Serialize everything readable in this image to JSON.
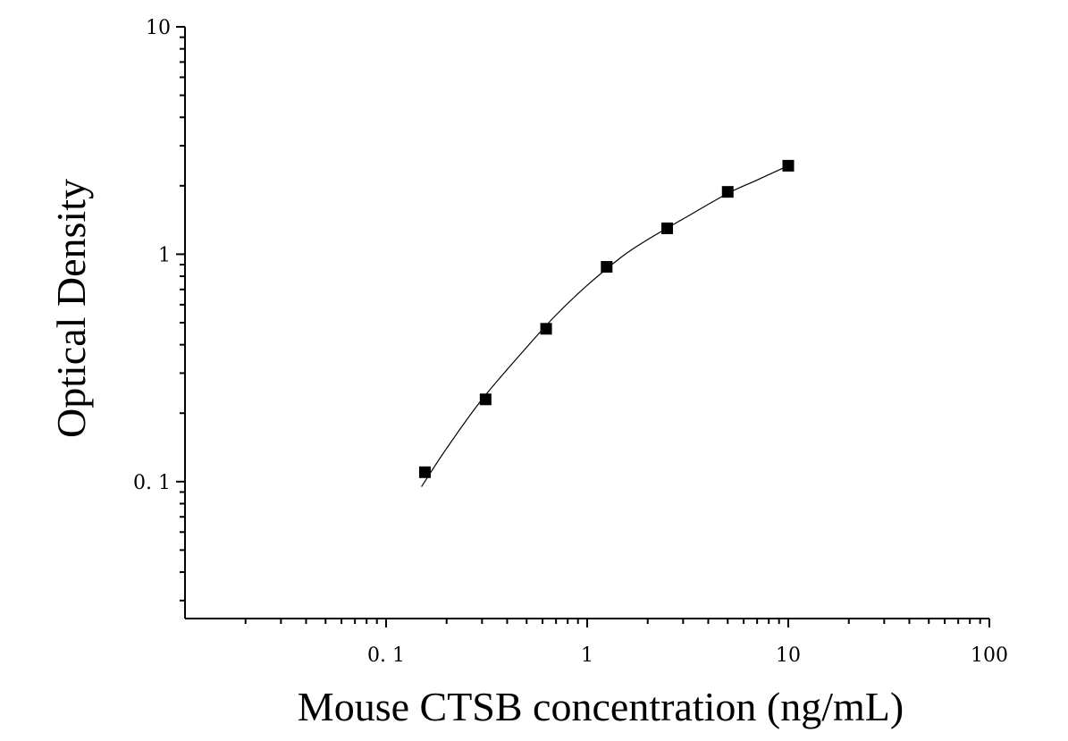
{
  "chart_data": {
    "type": "scatter",
    "title": "",
    "xlabel": "Mouse CTSB concentration (ng/mL)",
    "ylabel": "Optical Density",
    "x_scale": "log",
    "y_scale": "log",
    "xlim": [
      0.01,
      100
    ],
    "ylim": [
      0.025,
      10
    ],
    "x_ticks": [
      {
        "value": 0.1,
        "label": "0. 1"
      },
      {
        "value": 1,
        "label": "1"
      },
      {
        "value": 10,
        "label": "10"
      },
      {
        "value": 100,
        "label": "100"
      }
    ],
    "y_ticks": [
      {
        "value": 0.1,
        "label": "0. 1"
      },
      {
        "value": 1,
        "label": "1"
      },
      {
        "value": 10,
        "label": "10"
      }
    ],
    "grid": false,
    "legend": "none",
    "marker": "square",
    "marker_color": "#000000",
    "curve_color": "#000000",
    "points": [
      {
        "x": 0.156,
        "y": 0.11
      },
      {
        "x": 0.3125,
        "y": 0.23
      },
      {
        "x": 0.625,
        "y": 0.47
      },
      {
        "x": 1.25,
        "y": 0.88
      },
      {
        "x": 2.5,
        "y": 1.3
      },
      {
        "x": 5,
        "y": 1.88
      },
      {
        "x": 10,
        "y": 2.45
      }
    ],
    "fit_curve": [
      {
        "x": 0.15,
        "y": 0.095
      },
      {
        "x": 0.2,
        "y": 0.14
      },
      {
        "x": 0.3,
        "y": 0.23
      },
      {
        "x": 0.5,
        "y": 0.39
      },
      {
        "x": 0.7,
        "y": 0.54
      },
      {
        "x": 1,
        "y": 0.73
      },
      {
        "x": 1.5,
        "y": 0.98
      },
      {
        "x": 2,
        "y": 1.16
      },
      {
        "x": 3,
        "y": 1.43
      },
      {
        "x": 5,
        "y": 1.85
      },
      {
        "x": 7,
        "y": 2.12
      },
      {
        "x": 10,
        "y": 2.45
      }
    ]
  }
}
